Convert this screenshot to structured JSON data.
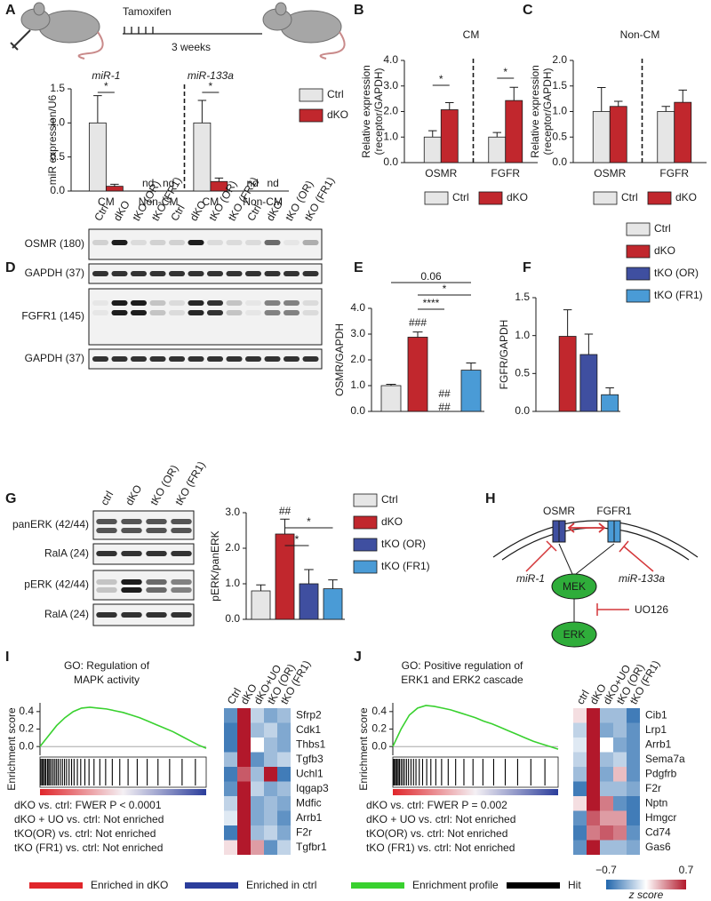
{
  "panels": [
    "A",
    "B",
    "C",
    "D",
    "E",
    "F",
    "G",
    "H",
    "I",
    "J"
  ],
  "panel_a": {
    "treatment": "Tamoxifen",
    "duration": "3 weeks"
  },
  "blot_d": {
    "lanes": [
      "Ctrl",
      "dKO",
      "tKO (OR)",
      "tKO (FR1)",
      "Ctrl",
      "dKO",
      "tKO (OR)",
      "tKO (FR1)",
      "Ctrl",
      "dKO",
      "tKO (OR)",
      "tKO (FR1)"
    ],
    "rows": [
      "OSMR (180)",
      "GAPDH (37)",
      "FGFR1 (145)",
      "GAPDH (37)"
    ]
  },
  "blot_g": {
    "lanes": [
      "ctrl",
      "dKO",
      "tKO (OR)",
      "tKO (FR1)"
    ],
    "rows": [
      "panERK (42/44)",
      "RalA (24)",
      "pERK (42/44)",
      "RalA (24)"
    ]
  },
  "diagram_h": {
    "receptor_1": "OSMR",
    "receptor_2": "FGFR1",
    "inhibitor_1": "miR-1",
    "inhibitor_2": "miR-133a",
    "kinase_1": "MEK",
    "kinase_2": "ERK",
    "drug": "UO126"
  },
  "legend_bottom": [
    {
      "label": "Enriched in dKO",
      "color": "#e0262b"
    },
    {
      "label": "Enriched in ctrl",
      "color": "#2b3d9b"
    },
    {
      "label": "Enrichment profile",
      "color": "#39d12f"
    },
    {
      "label": "Hit",
      "color": "#000000"
    }
  ],
  "colorbar": {
    "range": [
      {
        "value": -0.7,
        "label": "−0.7"
      },
      0.7
    ],
    "label": "z score"
  },
  "chart_data": [
    {
      "type": "bar",
      "group_titles": [
        "miR-1",
        "miR-133a"
      ],
      "ylabel": "miR expression/U6",
      "categories": [
        "CM",
        "Non-CM",
        "CM",
        "Non-CM"
      ],
      "series": [
        {
          "name": "Ctrl",
          "color": "#e6e6e6",
          "values": [
            1.0,
            null,
            1.0,
            null
          ],
          "errors": [
            0.4,
            null,
            0.33,
            null
          ],
          "value_labels": [
            null,
            "nd",
            null,
            "nd"
          ]
        },
        {
          "name": "dKO",
          "color": "#c1272d",
          "values": [
            0.07,
            null,
            0.14,
            null
          ],
          "errors": [
            0.03,
            null,
            0.05,
            null
          ],
          "value_labels": [
            null,
            "nd",
            null,
            "nd"
          ]
        }
      ],
      "ylim": [
        0,
        1.5
      ],
      "yticks": [
        {
          "value": 0,
          "label": "0.0"
        },
        {
          "value": 0.5,
          "label": "0.5"
        },
        {
          "value": 1,
          "label": "1.0"
        },
        {
          "value": 1.5,
          "label": "1.5"
        }
      ],
      "annotations": [
        "*",
        "*"
      ]
    },
    {
      "type": "bar",
      "title": "CM",
      "ylabel": [
        "Relative expression",
        "(receptor/GAPDH)"
      ],
      "categories": [
        "OSMR",
        "FGFR"
      ],
      "series": [
        {
          "name": "Ctrl",
          "color": "#e6e6e6",
          "values": [
            1.0,
            1.0
          ],
          "errors": [
            0.25,
            0.18
          ]
        },
        {
          "name": "dKO",
          "color": "#c1272d",
          "values": [
            2.07,
            2.43
          ],
          "errors": [
            0.28,
            0.52
          ]
        }
      ],
      "ylim": [
        0,
        4
      ],
      "yticks": [
        {
          "value": 0,
          "label": "0.0"
        },
        {
          "value": 1,
          "label": "1.0"
        },
        {
          "value": 2,
          "label": "2.0"
        },
        {
          "value": 3,
          "label": "3.0"
        },
        {
          "value": 4,
          "label": "4.0"
        }
      ],
      "annotations": [
        "*",
        "*"
      ]
    },
    {
      "type": "bar",
      "title": "Non-CM",
      "ylabel": [
        "Relative expression",
        "(receptor/GAPDH)"
      ],
      "categories": [
        "OSMR",
        "FGFR"
      ],
      "series": [
        {
          "name": "Ctrl",
          "color": "#e6e6e6",
          "values": [
            1.0,
            1.0
          ],
          "errors": [
            0.47,
            0.1
          ]
        },
        {
          "name": "dKO",
          "color": "#c1272d",
          "values": [
            1.1,
            1.18
          ],
          "errors": [
            0.1,
            0.24
          ]
        }
      ],
      "ylim": [
        0,
        2
      ],
      "yticks": [
        {
          "value": 0,
          "label": "0.0"
        },
        0.5,
        {
          "value": 1,
          "label": "1.0"
        },
        1.5,
        {
          "value": 2,
          "label": "2.0"
        }
      ]
    },
    {
      "type": "bar",
      "ylabel": "OSMR/GAPDH",
      "values": [
        1.0,
        2.88,
        0,
        1.6
      ],
      "errors": [
        0.05,
        0.2,
        0,
        0.28
      ],
      "colors": [
        "#e6e6e6",
        "#c1272d",
        "#3f4fa0",
        "#4a9bd6"
      ],
      "ylim": [
        0,
        4
      ],
      "yticks": [
        {
          "value": 0,
          "label": "0.0"
        },
        {
          "value": 1,
          "label": "1.0"
        },
        {
          "value": 2,
          "label": "2.0"
        },
        {
          "value": 3,
          "label": "3.0"
        },
        {
          "value": 4,
          "label": "4.0"
        }
      ],
      "annotations": [
        "###",
        "##",
        "##",
        "0.06",
        "*",
        "****"
      ]
    },
    {
      "type": "bar",
      "ylabel": "FGFR/GAPDH",
      "values": [
        0,
        0.99,
        0.75,
        0.22
      ],
      "errors": [
        0,
        0.35,
        0.27,
        0.09
      ],
      "colors": [
        "#e6e6e6",
        "#c1272d",
        "#3f4fa0",
        "#4a9bd6"
      ],
      "series_names": [
        "Ctrl",
        "dKO",
        "tKO (OR)",
        "tKO (FR1)"
      ],
      "ylim": [
        0,
        1.5
      ],
      "yticks": [
        {
          "value": 0,
          "label": "0.0"
        },
        0.5,
        {
          "value": 1,
          "label": "1.0"
        },
        1.5
      ]
    },
    {
      "type": "bar",
      "ylabel": "pERK/panERK",
      "values": [
        0.8,
        2.4,
        1.0,
        0.86
      ],
      "errors": [
        0.17,
        0.42,
        0.4,
        0.25
      ],
      "colors": [
        "#e6e6e6",
        "#c1272d",
        "#3f4fa0",
        "#4a9bd6"
      ],
      "series_names": [
        "Ctrl",
        "dKO",
        "tKO (OR)",
        "tKO (FR1)"
      ],
      "ylim": [
        0,
        3
      ],
      "yticks": [
        {
          "value": 0,
          "label": "0.0"
        },
        {
          "value": 1,
          "label": "1.0"
        },
        {
          "value": 2,
          "label": "2.0"
        },
        {
          "value": 3,
          "label": "3.0"
        }
      ],
      "annotations": [
        "##",
        "*",
        "*"
      ]
    },
    {
      "type": "line",
      "title": [
        "GO: Regulation of",
        "MAPK activity"
      ],
      "ylabel": "Enrichment score",
      "color": "#39d12f",
      "values": [
        0,
        0.12,
        0.24,
        0.33,
        0.4,
        0.44,
        0.45,
        0.44,
        0.43,
        0.41,
        0.39,
        0.36,
        0.33,
        0.29,
        0.25,
        0.21,
        0.17,
        0.12,
        0.07,
        0.02,
        -0.02
      ],
      "hits": [
        0.1,
        0.25,
        0.4,
        0.55,
        0.7,
        0.9,
        1.05,
        1.2,
        1.4,
        1.6,
        1.8,
        2.0,
        2.2,
        2.45,
        2.7,
        2.95,
        3.2,
        3.5,
        3.8,
        4.1,
        4.5,
        4.9,
        5.4,
        5.9,
        6.5,
        7.2,
        7.9,
        8.7,
        9.6,
        10.6,
        11.7,
        12.9,
        14.2,
        15.6,
        17.1,
        18.7
      ],
      "ylim": [
        -0.1,
        0.5
      ],
      "yticks": [
        0.4,
        0.2,
        {
          "value": 0,
          "label": "0.0"
        }
      ],
      "notes": [
        "dKO vs. ctrl: FWER P < 0.0001",
        "dKO + UO vs. ctrl: Not enriched",
        "tKO(OR) vs. ctrl: Not enriched",
        "tKO (FR1) vs. ctrl: Not enriched"
      ]
    },
    {
      "type": "heatmap",
      "columns": [
        "Ctrl",
        "dKO",
        "dKO+UO",
        "tKO (OR)",
        "tKO (FR1)"
      ],
      "rows": [
        "Sfrp2",
        "Cdk1",
        "Thbs1",
        "Tgfb3",
        "Uchl1",
        "Iqgap3",
        "Mdfic",
        "Arrb1",
        "F2r",
        "Tgfbr1"
      ],
      "values": [
        [
          -0.5,
          0.7,
          -0.2,
          -0.4,
          -0.3
        ],
        [
          -0.6,
          0.7,
          -0.3,
          -0.2,
          -0.4
        ],
        [
          -0.6,
          0.7,
          0.0,
          -0.3,
          -0.4
        ],
        [
          -0.3,
          0.7,
          -0.5,
          -0.3,
          -0.2
        ],
        [
          -0.6,
          0.5,
          -0.3,
          0.7,
          -0.6
        ],
        [
          -0.5,
          0.7,
          -0.2,
          -0.4,
          -0.3
        ],
        [
          -0.2,
          0.7,
          -0.4,
          -0.3,
          -0.4
        ],
        [
          -0.1,
          0.7,
          -0.4,
          -0.3,
          -0.5
        ],
        [
          -0.6,
          0.7,
          -0.3,
          -0.2,
          -0.4
        ],
        [
          0.1,
          0.7,
          0.3,
          -0.5,
          -0.2
        ]
      ]
    },
    {
      "type": "line",
      "title": [
        "GO: Positive regulation of",
        "ERK1 and ERK2 cascade"
      ],
      "ylabel": "Enrichment score",
      "color": "#39d12f",
      "values": [
        0,
        0.2,
        0.36,
        0.44,
        0.47,
        0.46,
        0.44,
        0.42,
        0.39,
        0.36,
        0.33,
        0.29,
        0.26,
        0.22,
        0.18,
        0.14,
        0.1,
        0.06,
        0.03,
        0.0,
        -0.03
      ],
      "hits": [
        0.1,
        0.2,
        0.35,
        0.5,
        0.65,
        0.8,
        1.0,
        1.2,
        1.4,
        1.65,
        1.9,
        2.2,
        2.5,
        2.8,
        3.2,
        3.6,
        4.1,
        4.6,
        5.2,
        5.9,
        6.7,
        7.6,
        8.6,
        9.7,
        10.9,
        12.2,
        13.6,
        15.1,
        16.7,
        18.4
      ],
      "ylim": [
        -0.1,
        0.5
      ],
      "yticks": [
        0.4,
        0.2,
        {
          "value": 0,
          "label": "0.0"
        }
      ],
      "notes": [
        "dKO vs. ctrl: FWER P = 0.002",
        "dKO + UO vs. ctrl: Not enriched",
        "tKO(OR) vs. ctrl: Not enriched",
        "tKO (FR1) vs. ctrl: Not enriched"
      ]
    },
    {
      "type": "heatmap",
      "columns": [
        "ctrl",
        "dKO",
        "dKO+UO",
        "tKO (OR)",
        "tKO (FR1)"
      ],
      "rows": [
        "Cib1",
        "Lrp1",
        "Arrb1",
        "Sema7a",
        "Pdgfrb",
        "F2r",
        "Nptn",
        "Hmgcr",
        "Cd74",
        "Gas6"
      ],
      "values": [
        [
          0.1,
          0.7,
          -0.3,
          -0.3,
          -0.6
        ],
        [
          -0.2,
          0.7,
          -0.4,
          -0.3,
          -0.5
        ],
        [
          -0.1,
          0.7,
          0.0,
          -0.4,
          -0.5
        ],
        [
          -0.2,
          0.7,
          -0.3,
          -0.2,
          -0.5
        ],
        [
          -0.3,
          0.7,
          -0.4,
          0.2,
          -0.5
        ],
        [
          -0.6,
          0.7,
          -0.3,
          -0.3,
          -0.4
        ],
        [
          0.1,
          0.7,
          0.4,
          -0.5,
          -0.6
        ],
        [
          -0.5,
          0.5,
          0.3,
          0.3,
          -0.6
        ],
        [
          -0.6,
          0.4,
          0.5,
          0.4,
          -0.5
        ],
        [
          -0.5,
          0.7,
          -0.3,
          -0.3,
          -0.4
        ]
      ]
    }
  ]
}
